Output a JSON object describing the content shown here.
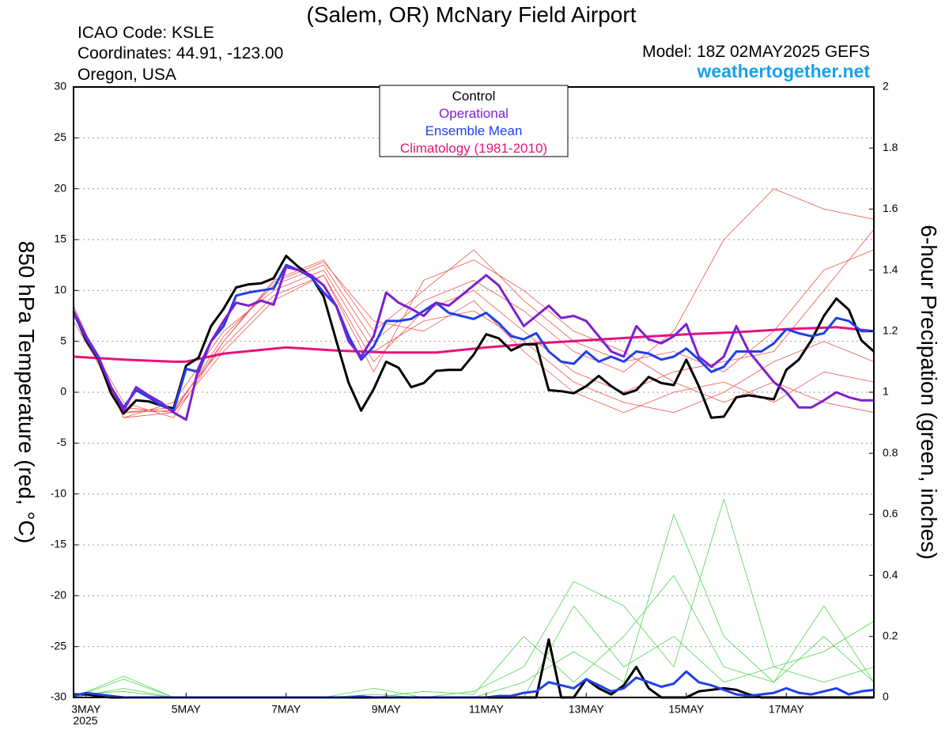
{
  "chart_data": {
    "type": "line",
    "title": "(Salem, OR) McNary Field Airport",
    "info_left": [
      "ICAO Code: KSLE",
      "Coordinates: 44.91, -123.00",
      "Oregon, USA"
    ],
    "model": "Model: 18Z 02MAY2025 GEFS",
    "source": "weathertogether.net",
    "ylabel": "850 hPa Temperature (red, °C)",
    "y2label": "6-hour Precipation (green, inches)",
    "year_label": "2025",
    "xlim": [
      0,
      64
    ],
    "xticks": [
      {
        "value": 1,
        "label": "3MAY"
      },
      {
        "value": 9,
        "label": "5MAY"
      },
      {
        "value": 17,
        "label": "7MAY"
      },
      {
        "value": 25,
        "label": "9MAY"
      },
      {
        "value": 33,
        "label": "11MAY"
      },
      {
        "value": 41,
        "label": "13MAY"
      },
      {
        "value": 49,
        "label": "15MAY"
      },
      {
        "value": 57,
        "label": "17MAY"
      }
    ],
    "ylim": [
      -30,
      30
    ],
    "yticks": [
      30,
      25,
      20,
      15,
      10,
      5,
      0,
      -5,
      -10,
      -15,
      -20,
      -25,
      -30
    ],
    "y2lim": [
      0,
      2
    ],
    "y2ticks": [
      2,
      1.8,
      1.6,
      1.4,
      1.2,
      1,
      0.8,
      0.6,
      0.4,
      0.2,
      0
    ],
    "grid": true,
    "x": [
      0,
      1,
      2,
      3,
      4,
      5,
      6,
      7,
      8,
      9,
      10,
      11,
      12,
      13,
      14,
      15,
      16,
      17,
      18,
      19,
      20,
      21,
      22,
      23,
      24,
      25,
      26,
      27,
      28,
      29,
      30,
      31,
      32,
      33,
      34,
      35,
      36,
      37,
      38,
      39,
      40,
      41,
      42,
      43,
      44,
      45,
      46,
      47,
      48,
      49,
      50,
      51,
      52,
      53,
      54,
      55,
      56,
      57,
      58,
      59,
      60,
      61,
      62,
      63,
      64
    ],
    "ensemble_members": {
      "x": [
        0,
        4,
        8,
        12,
        16,
        20,
        24,
        28,
        32,
        36,
        40,
        44,
        48,
        52,
        56,
        60,
        64
      ],
      "temperature_color": "#f0554d",
      "precipitation_color": "#4fd64f",
      "temperature": [
        [
          8.5,
          -2.5,
          -2,
          5.5,
          10.5,
          12.5,
          5,
          9,
          11,
          8,
          4,
          2,
          6,
          15,
          20,
          18,
          17
        ],
        [
          8,
          -2,
          -1.5,
          4.5,
          9.5,
          11.5,
          3,
          8,
          10,
          6,
          2,
          0,
          2,
          3,
          4,
          10,
          16
        ],
        [
          7.5,
          -1,
          -2.5,
          5,
          11,
          13,
          6,
          10,
          14,
          9,
          5,
          3,
          4,
          2,
          6,
          12,
          14
        ],
        [
          8,
          -2.5,
          -1,
          6,
          10,
          12,
          4,
          7,
          8,
          5,
          1,
          -1,
          -2,
          0,
          3,
          5,
          3
        ],
        [
          7,
          -1.5,
          -2,
          4,
          9,
          11.5,
          2,
          11,
          13,
          10,
          6,
          4,
          1,
          -1,
          1,
          -1,
          -2
        ],
        [
          8.2,
          -2,
          -1.8,
          5,
          10.8,
          12.8,
          7,
          6,
          9,
          4,
          0,
          -2,
          0,
          1,
          -1,
          2,
          1
        ]
      ],
      "precipitation": [
        [
          0,
          0.06,
          0,
          0,
          0,
          0,
          0,
          0,
          0,
          0,
          0.3,
          0.1,
          0.2,
          0.05,
          0.1,
          0.05,
          0.1
        ],
        [
          0,
          0.03,
          0,
          0,
          0,
          0,
          0.01,
          0,
          0,
          0.05,
          0.15,
          0.05,
          0.6,
          0.2,
          0.05,
          0.3,
          0.05
        ],
        [
          0,
          0.07,
          0,
          0,
          0,
          0,
          0.03,
          0,
          0.02,
          0.1,
          0.38,
          0.3,
          0.1,
          0.65,
          0.1,
          0.15,
          0.25
        ],
        [
          0.01,
          0.02,
          0,
          0,
          0,
          0,
          0,
          0.02,
          0.01,
          0.2,
          0.05,
          0.2,
          0.4,
          0.1,
          0.05,
          0.2,
          0.05
        ]
      ]
    },
    "series": [
      {
        "name": "Control",
        "color": "#000000",
        "width": 3,
        "values": [
          7.9,
          5.1,
          3.2,
          -0.1,
          -2.1,
          -0.8,
          -0.9,
          -1.3,
          -1.6,
          2.6,
          3.4,
          6.5,
          8.2,
          10.3,
          10.6,
          10.7,
          11.2,
          13.4,
          12.3,
          11.4,
          9.4,
          5.1,
          0.9,
          -1.8,
          0.3,
          3.0,
          2.4,
          0.5,
          0.9,
          2.1,
          2.2,
          2.2,
          3.7,
          5.7,
          5.3,
          4.1,
          4.7,
          4.7,
          0.2,
          0.1,
          -0.1,
          0.6,
          1.6,
          0.6,
          -0.2,
          0.2,
          1.5,
          0.9,
          0.7,
          3.2,
          0.6,
          -2.5,
          -2.4,
          -0.5,
          -0.3,
          -0.5,
          -0.7,
          2.2,
          3.2,
          5.1,
          7.5,
          9.2,
          8.1,
          5.1,
          4.0
        ],
        "precipitation": [
          0.01,
          0.01,
          0.005,
          0,
          0,
          0,
          0,
          0,
          0,
          0,
          0,
          0,
          0,
          0,
          0,
          0,
          0,
          0,
          0,
          0,
          0,
          0,
          0,
          0,
          0,
          0,
          0,
          0,
          0,
          0,
          0,
          0,
          0,
          0,
          0,
          0,
          0,
          0,
          0.19,
          0,
          0,
          0.06,
          0.03,
          0.01,
          0.04,
          0.1,
          0.03,
          0,
          0,
          0,
          0.02,
          0.025,
          0.03,
          0.025,
          0.01,
          0,
          0,
          0,
          0,
          0,
          0,
          0,
          0,
          0,
          0
        ]
      },
      {
        "name": "Operational",
        "color": "#7f1fcf",
        "width": 3,
        "values": [
          8.0,
          5.5,
          3.5,
          0.5,
          -1.8,
          0.5,
          -0.3,
          -1.0,
          -2.0,
          -2.7,
          2.4,
          5.0,
          7.0,
          8.8,
          8.5,
          9.0,
          8.6,
          12.3,
          12.0,
          11.5,
          10.5,
          8.5,
          5.0,
          3.5,
          5.5,
          9.8,
          8.8,
          8.2,
          7.5,
          8.8,
          8.5,
          9.5,
          10.5,
          11.5,
          10.5,
          8.5,
          6.5,
          7.5,
          8.5,
          7.3,
          7.5,
          7.0,
          5.5,
          4.0,
          3.5,
          6.5,
          5.2,
          4.8,
          5.5,
          6.7,
          3.5,
          2.5,
          3.5,
          6.5,
          4.0,
          2.5,
          1.0,
          0.0,
          -1.5,
          -1.5,
          -0.8,
          0.0,
          -0.5,
          -0.8,
          -0.8
        ]
      },
      {
        "name": "Ensemble Mean",
        "color": "#2040e8",
        "width": 3,
        "values": [
          7.8,
          5.3,
          3.3,
          0.5,
          -1.5,
          0.2,
          -0.5,
          -1.3,
          -1.8,
          2.3,
          2.0,
          5.0,
          6.5,
          9.5,
          9.8,
          10.0,
          10.2,
          12.5,
          12.0,
          11.3,
          9.8,
          8.5,
          5.5,
          3.2,
          4.5,
          7.0,
          7.0,
          7.2,
          8.0,
          8.8,
          7.8,
          7.5,
          7.2,
          7.8,
          6.8,
          5.5,
          5.2,
          5.8,
          4.0,
          3.0,
          2.8,
          4.0,
          3.0,
          3.5,
          3.0,
          4.0,
          3.8,
          3.2,
          3.5,
          4.3,
          3.2,
          2.0,
          2.5,
          4.0,
          4.0,
          4.0,
          4.8,
          6.2,
          5.8,
          5.5,
          5.8,
          7.3,
          7.0,
          6.0,
          6.0
        ],
        "precipitation": [
          0.005,
          0.015,
          0.01,
          0.005,
          0,
          0,
          0,
          0,
          0,
          0,
          0,
          0,
          0,
          0,
          0,
          0,
          0,
          0,
          0,
          0,
          0,
          0,
          0,
          0.003,
          0,
          0,
          0,
          0,
          0,
          0,
          0,
          0,
          0,
          0,
          0.005,
          0.005,
          0.015,
          0.02,
          0.05,
          0.04,
          0.03,
          0.06,
          0.04,
          0.02,
          0.03,
          0.065,
          0.05,
          0.035,
          0.045,
          0.085,
          0.05,
          0.04,
          0.025,
          0.01,
          0.005,
          0.01,
          0.015,
          0.03,
          0.015,
          0.01,
          0.02,
          0.03,
          0.01,
          0.02,
          0.025
        ]
      },
      {
        "name": "Climatology (1981-2010)",
        "color": "#e8127c",
        "width": 3,
        "x": [
          0,
          4,
          8,
          9,
          12,
          17,
          21,
          25,
          29,
          33,
          37,
          41,
          45,
          49,
          53,
          57,
          61,
          64
        ],
        "values": [
          3.5,
          3.2,
          3.0,
          3.0,
          3.8,
          4.4,
          4.1,
          3.9,
          3.9,
          4.4,
          4.8,
          5.1,
          5.4,
          5.7,
          5.9,
          6.2,
          6.4,
          6.0
        ]
      }
    ]
  }
}
